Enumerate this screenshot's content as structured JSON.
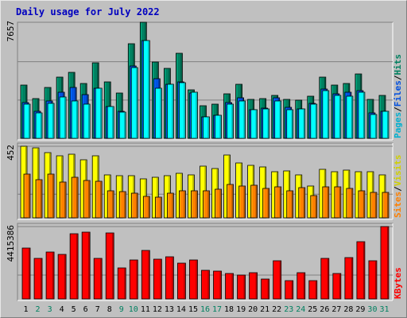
{
  "chart_data": {
    "type": "bar",
    "title": "Daily usage for July 2022",
    "categories": [
      "1",
      "2",
      "3",
      "4",
      "5",
      "6",
      "7",
      "8",
      "9",
      "10",
      "11",
      "12",
      "13",
      "14",
      "15",
      "16",
      "17",
      "18",
      "19",
      "20",
      "21",
      "22",
      "23",
      "24",
      "25",
      "26",
      "27",
      "28",
      "29",
      "30",
      "31"
    ],
    "weekend_days": [
      "2",
      "3",
      "9",
      "10",
      "16",
      "17",
      "23",
      "24",
      "30",
      "31"
    ],
    "panels": [
      {
        "ytick_label": "7657",
        "ymax": 7657,
        "legend": [
          {
            "name": "Pages",
            "color": "#00b0d0"
          },
          {
            "name": "/",
            "color": "#000000"
          },
          {
            "name": "Files",
            "color": "#0050e0"
          },
          {
            "name": "/",
            "color": "#000000"
          },
          {
            "name": "Hits",
            "color": "#008060"
          }
        ],
        "series": [
          {
            "name": "Hits",
            "color": "#008060",
            "values": [
              3490,
              2630,
              3380,
              4040,
              4350,
              3640,
              4960,
              3720,
              2970,
              6220,
              7657,
              5030,
              4610,
              5600,
              3210,
              2130,
              2270,
              2960,
              3550,
              2580,
              2640,
              2810,
              2550,
              2520,
              2790,
              4020,
              3540,
              3640,
              4250,
              2580,
              2850
            ]
          },
          {
            "name": "Files",
            "color": "#0050e0",
            "values": [
              2340,
              1790,
              2460,
              3060,
              3380,
              2870,
              3330,
              2080,
              1800,
              4770,
              6430,
              3940,
              3550,
              3720,
              3000,
              1430,
              1530,
              2370,
              2670,
              1900,
              2000,
              2650,
              2030,
              1950,
              2300,
              3230,
              2950,
              3020,
              3130,
              1700,
              1800
            ]
          },
          {
            "name": "Pages",
            "color": "#00ffff",
            "values": [
              2270,
              1700,
              2330,
              2730,
              2460,
              2260,
              3280,
              2080,
              1730,
              4670,
              6430,
              3310,
              3550,
              3680,
              3020,
              1400,
              1530,
              2230,
              2440,
              1880,
              1950,
              2480,
              1870,
              1950,
              2270,
              3140,
              2830,
              2800,
              3020,
              1590,
              1770
            ]
          }
        ]
      },
      {
        "ytick_label": "452",
        "ymax": 452,
        "legend": [
          {
            "name": "Sites",
            "color": "#ff8000"
          },
          {
            "name": "/",
            "color": "#000000"
          },
          {
            "name": "Visits",
            "color": "#d0d000"
          }
        ],
        "series": [
          {
            "name": "Visits",
            "color": "#ffff00",
            "values": [
              450,
              440,
              410,
              390,
              401,
              367,
              391,
              270,
              266,
              266,
              246,
              256,
              266,
              282,
              271,
              325,
              311,
              398,
              347,
              330,
              321,
              291,
              296,
              273,
              200,
              307,
              291,
              301,
              291,
              291,
              271
            ]
          },
          {
            "name": "Sites",
            "color": "#ff8000",
            "values": [
              276,
              241,
              276,
              226,
              254,
              236,
              231,
              169,
              166,
              156,
              137,
              131,
              154,
              171,
              171,
              170,
              181,
              210,
              203,
              208,
              186,
              196,
              173,
              191,
              140,
              196,
              196,
              186,
              171,
              161,
              161
            ]
          }
        ]
      },
      {
        "ytick_label": "4415386",
        "ymax": 4415386,
        "legend": [
          {
            "name": "KBytes",
            "color": "#ff0000"
          }
        ],
        "series": [
          {
            "name": "KBytes",
            "color": "#ff0000",
            "values": [
              3100000,
              2480000,
              2880000,
              2730000,
              4000000,
              4090000,
              2480000,
              4030000,
              1870000,
              2400000,
              2970000,
              2450000,
              2550000,
              2160000,
              2400000,
              1760000,
              1720000,
              1560000,
              1460000,
              1600000,
              1210000,
              2330000,
              1130000,
              1590000,
              1120000,
              2460000,
              1570000,
              2540000,
              3510000,
              2330000,
              4415386
            ]
          }
        ]
      }
    ]
  }
}
